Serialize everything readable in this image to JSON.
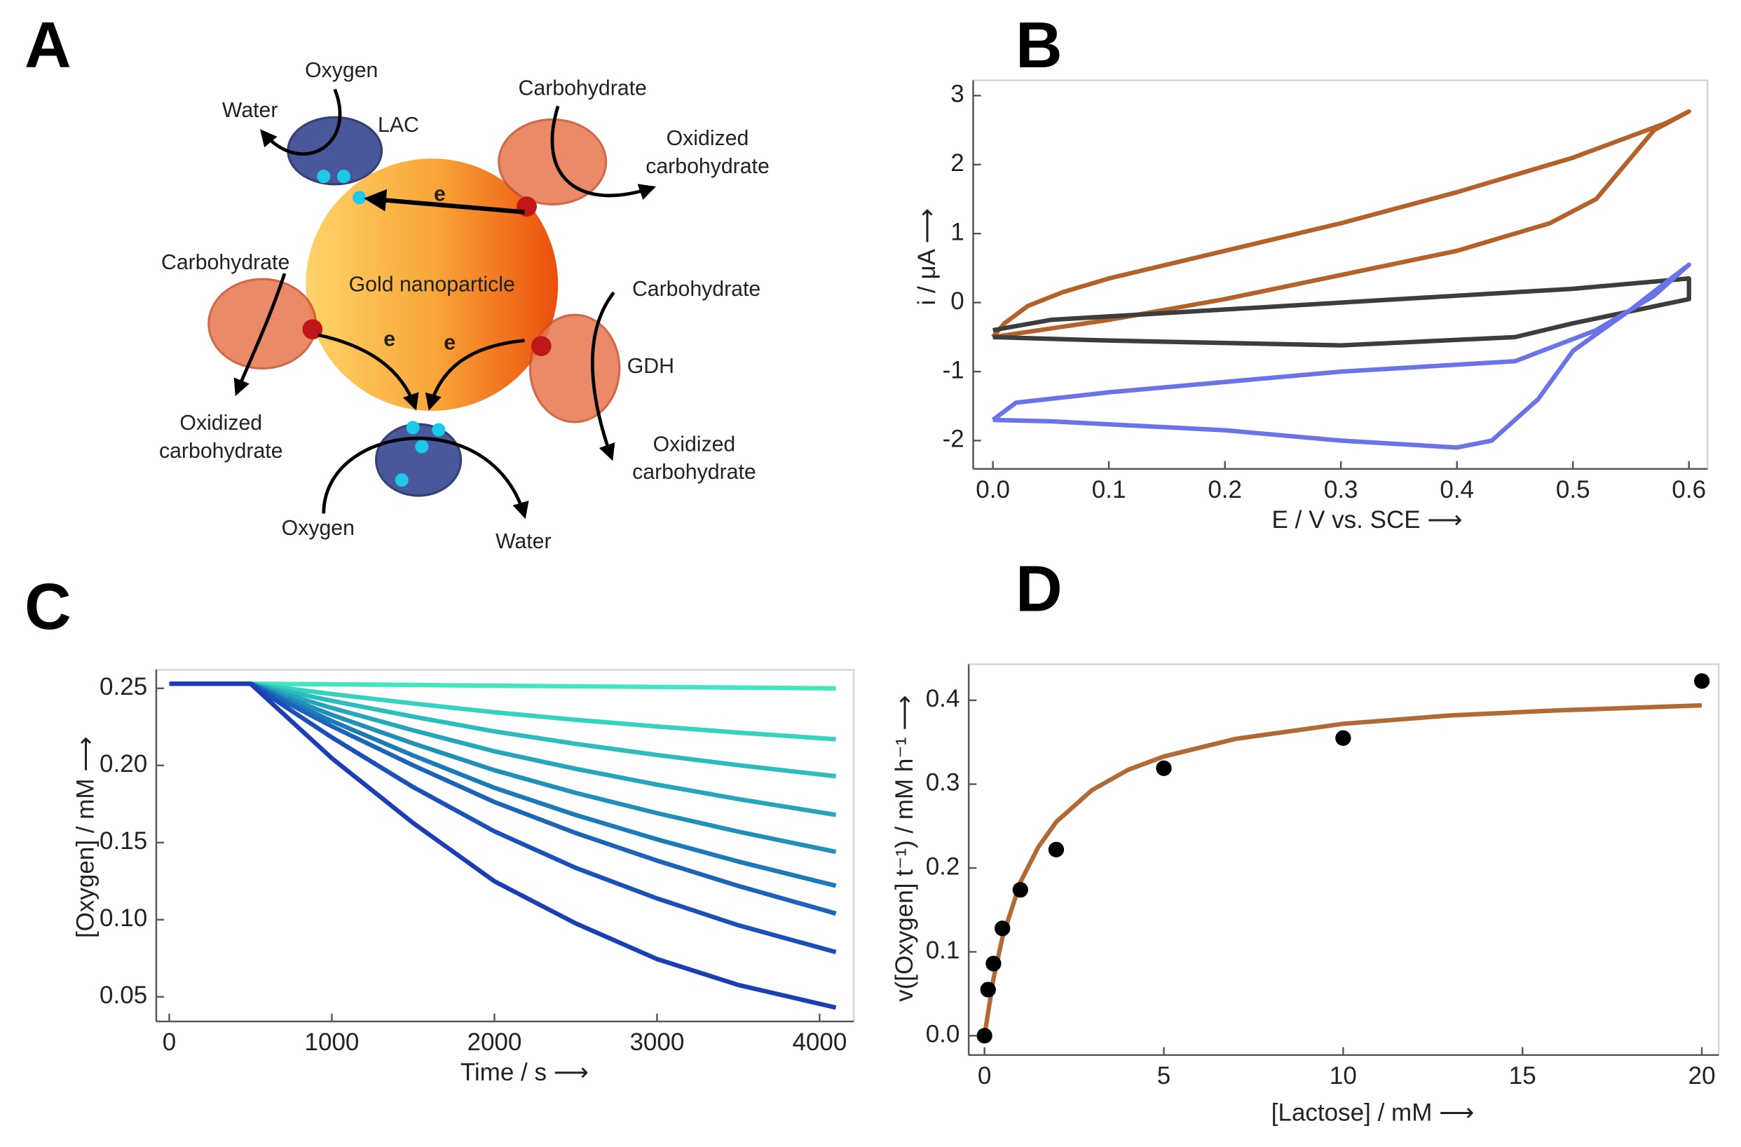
{
  "panels": [
    "A",
    "B",
    "C",
    "D"
  ],
  "diagram": {
    "labels": [
      "Oxygen",
      "Water",
      "LAC",
      "Carbohydrate",
      "Oxidized",
      "carbohydrate",
      "e",
      "Gold nanoparticle",
      "Carbohydrate",
      "Carbohydrate",
      "GDH",
      "e",
      "e",
      "Oxidized",
      "carbohydrate",
      "Oxidized",
      "carbohydrate",
      "Oxygen",
      "Water"
    ]
  },
  "chart_data": [
    {
      "type": "line",
      "xlabel": "E / V vs. SCE ⟶",
      "ylabel": "i / μA ⟶",
      "xlim": [
        -0.017,
        0.616
      ],
      "ylim": [
        -2.41,
        3.22
      ],
      "xticks": [
        {
          "value": 0,
          "label": "0.0"
        },
        0.1,
        0.2,
        0.3,
        0.4,
        0.5,
        0.6
      ],
      "yticks": [
        -2,
        -1,
        0,
        1,
        2,
        3
      ],
      "series": [
        {
          "color": "#b5622a",
          "x": [
            0,
            0.01,
            0.03,
            0.06,
            0.1,
            0.2,
            0.3,
            0.4,
            0.5,
            0.58,
            0.6,
            0.57,
            0.52,
            0.48,
            0.4,
            0.3,
            0.2,
            0.1,
            0.02,
            0
          ],
          "values": [
            -0.5,
            -0.3,
            -0.05,
            0.15,
            0.35,
            0.75,
            1.15,
            1.6,
            2.1,
            2.6,
            2.77,
            2.5,
            1.5,
            1.15,
            0.75,
            0.4,
            0.05,
            -0.25,
            -0.45,
            -0.5
          ]
        },
        {
          "color": "#3d3d3d",
          "x": [
            0,
            0.05,
            0.2,
            0.4,
            0.5,
            0.6,
            0.6,
            0.5,
            0.45,
            0.3,
            0.1,
            0
          ],
          "values": [
            -0.4,
            -0.25,
            -0.1,
            0.1,
            0.2,
            0.35,
            0.05,
            -0.3,
            -0.5,
            -0.62,
            -0.55,
            -0.5
          ]
        },
        {
          "color": "#6b73e8",
          "x": [
            0,
            0.05,
            0.2,
            0.3,
            0.4,
            0.43,
            0.47,
            0.5,
            0.55,
            0.6,
            0.57,
            0.52,
            0.45,
            0.3,
            0.1,
            0.02,
            0
          ],
          "values": [
            -1.7,
            -1.72,
            -1.85,
            -2.0,
            -2.1,
            -2.0,
            -1.4,
            -0.7,
            -0.1,
            0.55,
            0.1,
            -0.4,
            -0.85,
            -1.0,
            -1.3,
            -1.45,
            -1.7
          ]
        }
      ]
    },
    {
      "type": "line",
      "xlabel": "Time / s ⟶",
      "ylabel": "[Oxygen] / mM ⟶",
      "xlim": [
        -80,
        4210
      ],
      "ylim": [
        0.034,
        0.262
      ],
      "xticks": [
        0,
        1000,
        2000,
        3000,
        4000
      ],
      "yticks": [
        0.05,
        {
          "value": 0.1,
          "label": "0.10"
        },
        0.15,
        {
          "value": 0.2,
          "label": "0.20"
        },
        0.25
      ],
      "x": [
        0,
        500,
        1000,
        1500,
        2000,
        2500,
        3000,
        3500,
        4100
      ],
      "series": [
        {
          "color": "#40e6c0",
          "values": [
            0.253,
            0.253,
            0.2526,
            0.2522,
            0.2517,
            0.2513,
            0.2509,
            0.2505,
            0.25
          ]
        },
        {
          "color": "#35d2bf",
          "values": [
            0.253,
            0.253,
            0.2463,
            0.2402,
            0.2345,
            0.2296,
            0.2253,
            0.2213,
            0.217
          ]
        },
        {
          "color": "#2dbcbd",
          "values": [
            0.253,
            0.253,
            0.2419,
            0.2317,
            0.2221,
            0.214,
            0.2068,
            0.2002,
            0.193
          ]
        },
        {
          "color": "#26a6ba",
          "values": [
            0.253,
            0.253,
            0.2373,
            0.2228,
            0.2092,
            0.1978,
            0.1876,
            0.1782,
            0.168
          ]
        },
        {
          "color": "#2090b8",
          "values": [
            0.253,
            0.253,
            0.2328,
            0.2143,
            0.1969,
            0.1822,
            0.1691,
            0.1571,
            0.144
          ]
        },
        {
          "color": "#1d7ab8",
          "values": [
            0.253,
            0.253,
            0.2288,
            0.2065,
            0.1855,
            0.1679,
            0.1521,
            0.1377,
            0.122
          ]
        },
        {
          "color": "#1b64b8",
          "values": [
            0.253,
            0.253,
            0.2254,
            0.2001,
            0.1763,
            0.1562,
            0.1383,
            0.1219,
            0.104
          ]
        },
        {
          "color": "#1a50b8",
          "values": [
            0.253,
            0.253,
            0.2182,
            0.186,
            0.1573,
            0.1336,
            0.1138,
            0.0964,
            0.079
          ]
        },
        {
          "color": "#1a3eb4",
          "values": [
            0.253,
            0.253,
            0.2047,
            0.1627,
            0.1249,
            0.0976,
            0.0745,
            0.0577,
            0.043
          ]
        }
      ]
    },
    {
      "type": "scatter",
      "xlabel": "[Lactose] / mM ⟶",
      "ylabel": "v([Oxygen] t⁻¹) / mM h⁻¹ ⟶",
      "xlim": [
        -0.44,
        20.47
      ],
      "ylim": [
        -0.023,
        0.443
      ],
      "xticks": [
        0,
        5,
        10,
        15,
        20
      ],
      "yticks": [
        {
          "value": 0,
          "label": "0.0"
        },
        0.1,
        0.2,
        0.3,
        0.4
      ],
      "color": "#000000",
      "x": [
        0,
        0.1,
        0.25,
        0.5,
        1,
        2,
        5,
        10,
        20
      ],
      "values": [
        0,
        0.055,
        0.086,
        0.128,
        0.174,
        0.222,
        0.319,
        0.355,
        0.423
      ],
      "fit": {
        "color": "#b06a35",
        "x": [
          0,
          0.25,
          0.5,
          1,
          1.5,
          2,
          3,
          4,
          5,
          7,
          10,
          13,
          16,
          20
        ],
        "values": [
          0,
          0.068,
          0.117,
          0.183,
          0.225,
          0.255,
          0.293,
          0.317,
          0.333,
          0.354,
          0.372,
          0.382,
          0.388,
          0.394
        ]
      }
    }
  ]
}
